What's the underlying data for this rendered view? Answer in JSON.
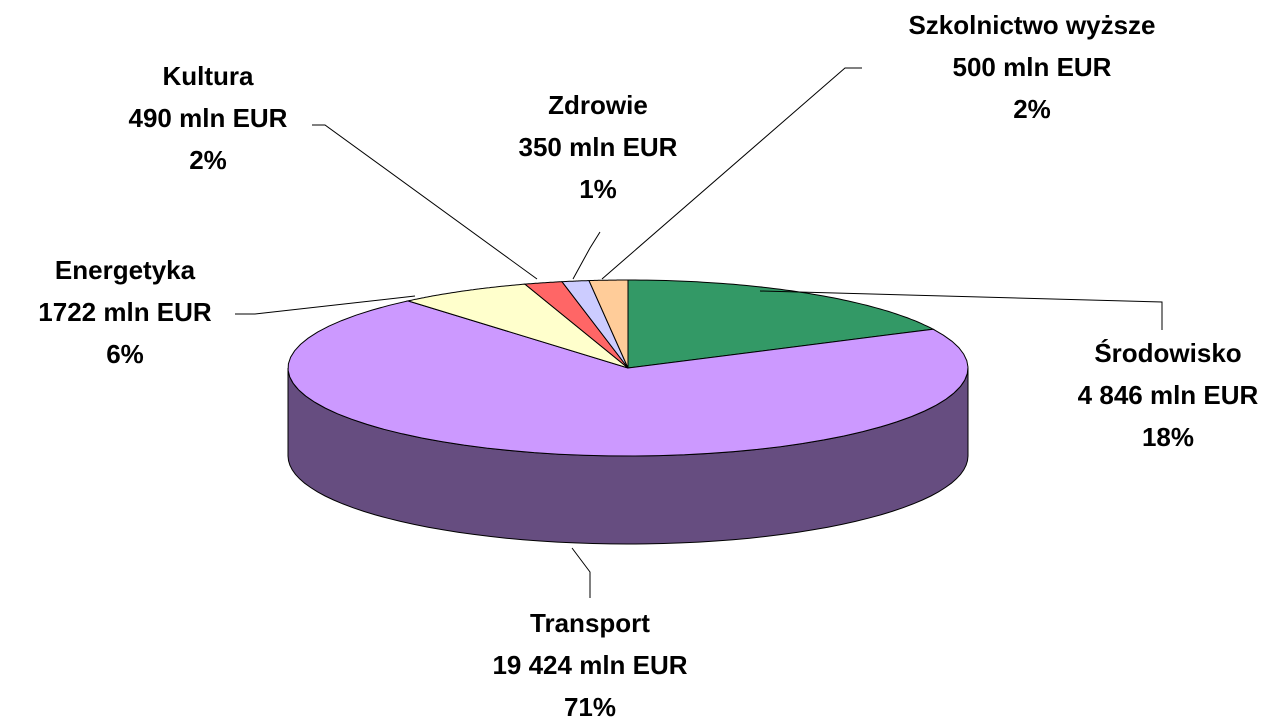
{
  "chart_data": {
    "type": "pie",
    "categories": [
      "Środowisko",
      "Transport",
      "Energetyka",
      "Kultura",
      "Zdrowie",
      "Szkolnictwo wyższe"
    ],
    "values": [
      4846,
      19424,
      1722,
      490,
      350,
      500
    ],
    "value_labels": [
      "4 846 mln EUR",
      "19 424 mln EUR",
      "1722 mln EUR",
      "490 mln EUR",
      "350 mln EUR",
      "500 mln EUR"
    ],
    "percent_labels": [
      "18%",
      "71%",
      "6%",
      "2%",
      "1%",
      "2%"
    ],
    "colors": [
      "#339966",
      "#cc99ff",
      "#ffffcc",
      "#ff6666",
      "#ccccff",
      "#ffcc99"
    ]
  }
}
